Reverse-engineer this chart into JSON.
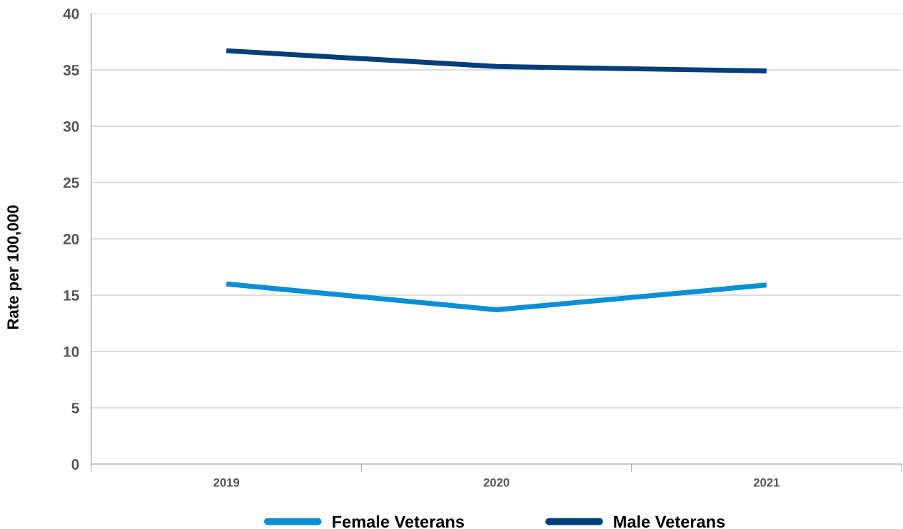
{
  "chart_data": {
    "type": "line",
    "ylabel": "Rate per 100,000",
    "categories": [
      "2019",
      "2020",
      "2021"
    ],
    "series": [
      {
        "name": "Female Veterans",
        "color": "#0a8fd6",
        "values": [
          16.0,
          13.7,
          15.9
        ]
      },
      {
        "name": "Male Veterans",
        "color": "#003f7a",
        "values": [
          36.7,
          35.3,
          34.9
        ]
      }
    ],
    "ylim": [
      0,
      40
    ],
    "yticks": [
      0,
      5,
      10,
      15,
      20,
      25,
      30,
      35,
      40
    ],
    "grid": "y",
    "legend": "bottom",
    "marker": "none",
    "line_style": "solid"
  }
}
